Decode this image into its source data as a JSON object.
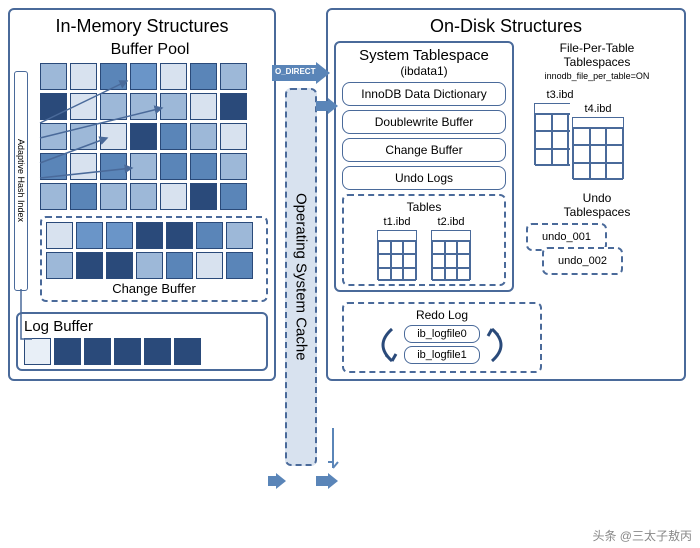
{
  "left": {
    "title": "In-Memory Structures",
    "title_fontsize": 18,
    "bufferPool": {
      "title": "Buffer Pool",
      "title_fontsize": 16,
      "cols": 7,
      "rows": 5,
      "cell_size": 27,
      "colors": [
        "#9db8d8",
        "#d8e2ef",
        "#5a85b8",
        "#6a95c8",
        "#d8e2ef",
        "#5a85b8",
        "#9db8d8",
        "#2a4a7a",
        "#d8e2ef",
        "#9db8d8",
        "#9db8d8",
        "#9db8d8",
        "#d8e2ef",
        "#2a4a7a",
        "#9db8d8",
        "#9db8d8",
        "#d8e2ef",
        "#2a4a7a",
        "#5a85b8",
        "#9db8d8",
        "#d8e2ef",
        "#5a85b8",
        "#d8e2ef",
        "#5a85b8",
        "#9db8d8",
        "#5a85b8",
        "#5a85b8",
        "#9db8d8",
        "#9db8d8",
        "#5a85b8",
        "#9db8d8",
        "#9db8d8",
        "#d8e2ef",
        "#2a4a7a",
        "#5a85b8"
      ],
      "ahi_label": "Adaptive Hash Index",
      "ahi_fontsize": 9,
      "arrow_color": "#4a6a9a"
    },
    "changeBuffer": {
      "title": "Change Buffer",
      "title_fontsize": 13,
      "cols": 7,
      "rows": 2,
      "cell_size": 27,
      "colors": [
        "#d8e2ef",
        "#6a95c8",
        "#6a95c8",
        "#2a4a7a",
        "#2a4a7a",
        "#5a85b8",
        "#9db8d8",
        "#9db8d8",
        "#2a4a7a",
        "#2a4a7a",
        "#9db8d8",
        "#5a85b8",
        "#d8e2ef",
        "#5a85b8"
      ]
    },
    "logBuffer": {
      "title": "Log Buffer",
      "title_fontsize": 15,
      "cols": 6,
      "cell_size": 27,
      "colors": [
        "#e8eff7",
        "#2a4a7a",
        "#2a4a7a",
        "#2a4a7a",
        "#2a4a7a",
        "#2a4a7a"
      ]
    },
    "border_color": "#4a6a9a"
  },
  "middle": {
    "o_direct_label": "O_DIRECT",
    "o_direct_bg": "#3a6aa0",
    "o_direct_fg": "#ffffff",
    "os_cache_label": "Operating System Cache",
    "os_cache_bg": "#d8e2ef",
    "os_cache_border": "#4a6a9a",
    "os_cache_fontsize": 15,
    "arrow_color": "#5a85b8"
  },
  "right": {
    "title": "On-Disk Structures",
    "title_fontsize": 18,
    "systemTablespace": {
      "title": "System Tablespace",
      "subtitle": "(ibdata1)",
      "title_fontsize": 15,
      "subtitle_fontsize": 12,
      "items": [
        "InnoDB Data Dictionary",
        "Doublewrite Buffer",
        "Change Buffer",
        "Undo Logs"
      ],
      "item_fontsize": 12,
      "tables": {
        "title": "Tables",
        "files": [
          "t1.ibd",
          "t2.ibd"
        ],
        "fontsize": 11,
        "box_size": 40
      }
    },
    "filePerTable": {
      "title": "File-Per-Table Tablespaces",
      "config": "innodb_file_per_table=ON",
      "title_fontsize": 12,
      "config_fontsize": 9,
      "files": [
        "t3.ibd",
        "t4.ibd"
      ],
      "file_fontsize": 11,
      "box_size": 52
    },
    "undoTablespaces": {
      "title": "Undo Tablespaces",
      "title_fontsize": 12,
      "files": [
        "undo_001",
        "undo_002"
      ],
      "file_fontsize": 11
    },
    "redoLog": {
      "title": "Redo Log",
      "title_fontsize": 12,
      "files": [
        "ib_logfile0",
        "ib_logfile1"
      ],
      "file_fontsize": 11,
      "arrow_color": "#2a4a7a"
    }
  },
  "watermark": "头条 @三太子敖丙",
  "colors": {
    "border": "#4a6a9a",
    "dashed": "#4a6a9a",
    "text": "#222222"
  }
}
